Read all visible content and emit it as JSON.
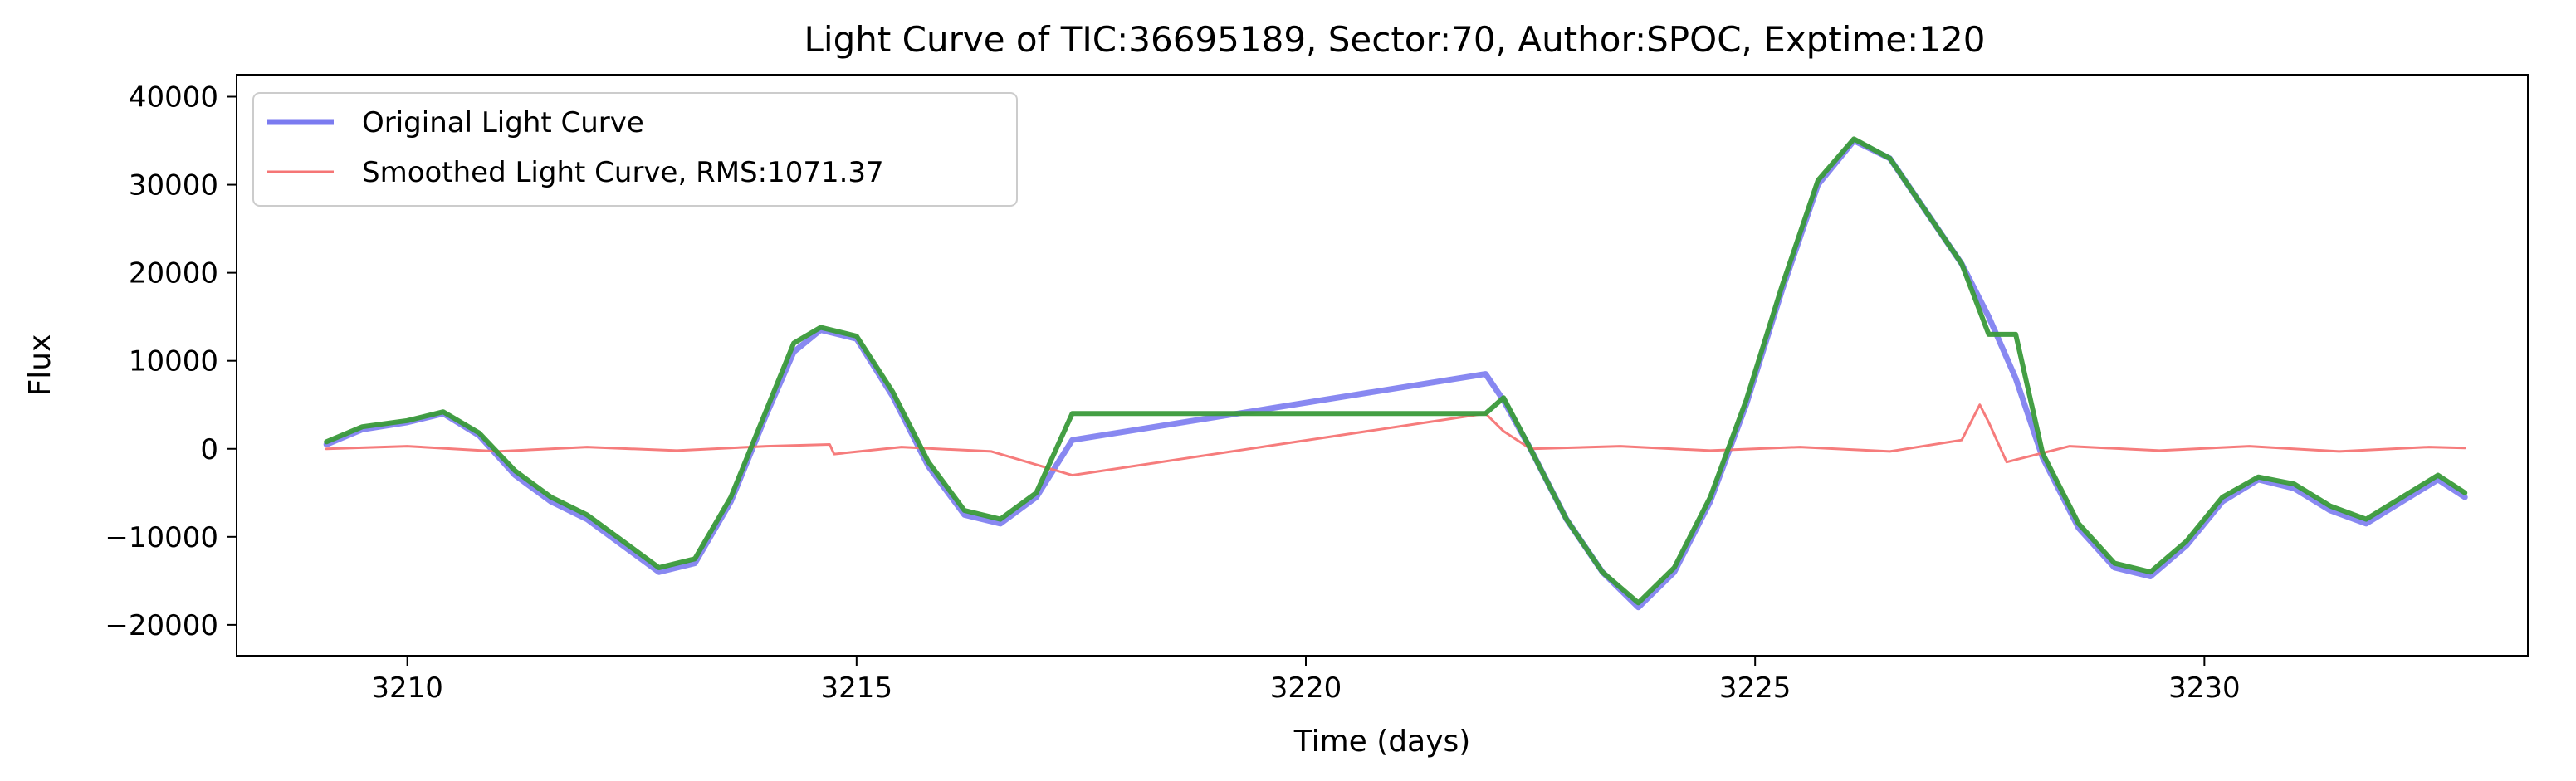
{
  "chart_data": {
    "type": "line",
    "title": "Light Curve of TIC:36695189, Sector:70, Author:SPOC, Exptime:120",
    "xlabel": "Time (days)",
    "ylabel": "Flux",
    "xlim": [
      3208.1,
      3233.6
    ],
    "ylim": [
      -23500,
      42500
    ],
    "xticks": [
      3210,
      3215,
      3220,
      3225,
      3230
    ],
    "yticks": [
      -20000,
      -10000,
      0,
      10000,
      20000,
      30000,
      40000
    ],
    "xtick_labels": [
      "3210",
      "3215",
      "3220",
      "3225",
      "3230"
    ],
    "ytick_labels": [
      "−20000",
      "−10000",
      "0",
      "10000",
      "20000",
      "30000",
      "40000"
    ],
    "grid": false,
    "legend_position": "top-left",
    "series": [
      {
        "name": "Original Light Curve",
        "color": "#7b7bf0",
        "x": [
          3209.1,
          3209.5,
          3210.0,
          3210.4,
          3210.8,
          3211.2,
          3211.6,
          3212.0,
          3212.4,
          3212.8,
          3213.2,
          3213.6,
          3214.0,
          3214.3,
          3214.6,
          3215.0,
          3215.4,
          3215.8,
          3216.2,
          3216.6,
          3217.0,
          3217.4,
          3222.0,
          3222.2,
          3222.5,
          3222.9,
          3223.3,
          3223.7,
          3224.1,
          3224.5,
          3224.9,
          3225.3,
          3225.7,
          3226.1,
          3226.5,
          3226.9,
          3227.3,
          3227.6,
          3227.9,
          3228.2,
          3228.6,
          3229.0,
          3229.4,
          3229.8,
          3230.2,
          3230.6,
          3231.0,
          3231.4,
          3231.8,
          3232.2,
          3232.6,
          3232.9
        ],
        "y": [
          500,
          2200,
          3000,
          4000,
          1500,
          -3000,
          -6000,
          -8000,
          -11000,
          -14000,
          -13000,
          -6000,
          4000,
          11000,
          13500,
          12500,
          6000,
          -2000,
          -7500,
          -8500,
          -5500,
          1000,
          8500,
          5500,
          0,
          -8000,
          -14000,
          -18000,
          -14000,
          -6000,
          5000,
          18000,
          30000,
          35000,
          33000,
          27000,
          21000,
          15000,
          8000,
          -1000,
          -9000,
          -13500,
          -14500,
          -11000,
          -6000,
          -3500,
          -4500,
          -7000,
          -8500,
          -6000,
          -3500,
          -5500
        ]
      },
      {
        "name": "Smoothed Light Curve, RMS:1071.37",
        "color": "#f57575",
        "x": [
          3209.1,
          3210.0,
          3211.0,
          3212.0,
          3213.0,
          3214.0,
          3214.7,
          3214.75,
          3215.5,
          3216.5,
          3217.4,
          3222.0,
          3222.2,
          3222.5,
          3223.5,
          3224.5,
          3225.5,
          3226.5,
          3227.3,
          3227.5,
          3227.6,
          3227.8,
          3228.5,
          3229.5,
          3230.5,
          3231.5,
          3232.5,
          3232.9
        ],
        "y": [
          0,
          300,
          -300,
          200,
          -200,
          300,
          500,
          -600,
          200,
          -300,
          -3000,
          4000,
          2000,
          0,
          300,
          -200,
          200,
          -300,
          1000,
          5000,
          3000,
          -1500,
          300,
          -200,
          300,
          -300,
          200,
          100
        ]
      },
      {
        "name": "",
        "color": "#3a9a3a",
        "x": [
          3209.1,
          3209.5,
          3210.0,
          3210.4,
          3210.8,
          3211.2,
          3211.6,
          3212.0,
          3212.4,
          3212.8,
          3213.2,
          3213.6,
          3214.0,
          3214.3,
          3214.6,
          3215.0,
          3215.4,
          3215.8,
          3216.2,
          3216.6,
          3217.0,
          3217.4,
          3222.0,
          3222.2,
          3222.5,
          3222.9,
          3223.3,
          3223.7,
          3224.1,
          3224.5,
          3224.9,
          3225.3,
          3225.7,
          3226.1,
          3226.5,
          3226.9,
          3227.3,
          3227.6,
          3227.9,
          3228.2,
          3228.6,
          3229.0,
          3229.4,
          3229.8,
          3230.2,
          3230.6,
          3231.0,
          3231.4,
          3231.8,
          3232.2,
          3232.6,
          3232.9
        ],
        "y": [
          800,
          2500,
          3200,
          4200,
          1800,
          -2500,
          -5500,
          -7500,
          -10500,
          -13500,
          -12500,
          -5500,
          4500,
          12000,
          13800,
          12800,
          6500,
          -1500,
          -7000,
          -8000,
          -5000,
          4000,
          4000,
          5800,
          0,
          -8000,
          -14000,
          -17500,
          -13500,
          -5500,
          5500,
          18500,
          30500,
          35200,
          33000,
          27000,
          21000,
          13000,
          13000,
          -500,
          -8500,
          -13000,
          -14000,
          -10500,
          -5500,
          -3200,
          -4000,
          -6500,
          -8000,
          -5500,
          -3000,
          -5000
        ]
      }
    ]
  }
}
